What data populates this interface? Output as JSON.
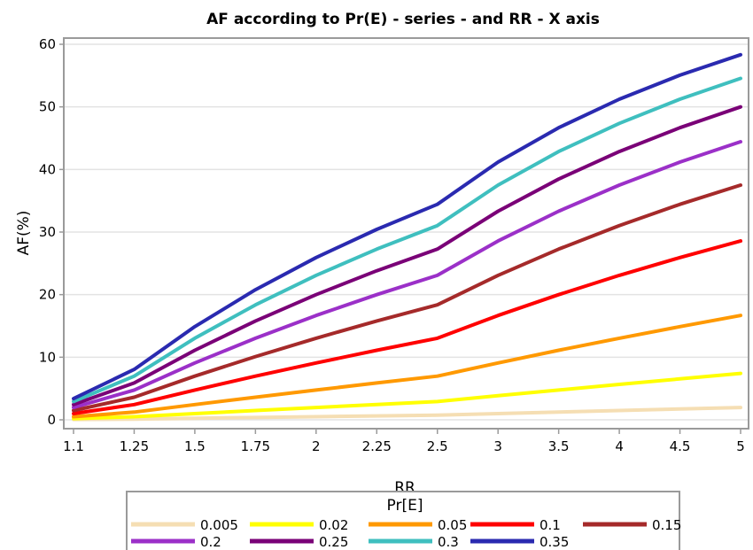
{
  "chart_data": {
    "type": "line",
    "title": "AF according to Pr(E) - series  - and RR - X axis",
    "xlabel": "RR",
    "ylabel": "AF(%)",
    "x": [
      "1.1",
      "1.25",
      "1.5",
      "1.75",
      "2",
      "2.25",
      "2.5",
      "3",
      "3.5",
      "4",
      "4.5",
      "5"
    ],
    "ylim": [
      0,
      60
    ],
    "yticks": [
      0,
      10,
      20,
      30,
      40,
      50,
      60
    ],
    "grid": true,
    "legend": {
      "title": "Pr[E]",
      "placement": "bottom"
    },
    "series": [
      {
        "name": "0.005",
        "color": "#f5deb3",
        "values": [
          0.05,
          0.12,
          0.25,
          0.37,
          0.5,
          0.62,
          0.74,
          0.99,
          1.23,
          1.48,
          1.72,
          1.96
        ]
      },
      {
        "name": "0.02",
        "color": "#ffff00",
        "values": [
          0.2,
          0.5,
          0.99,
          1.48,
          1.96,
          2.44,
          2.91,
          3.85,
          4.76,
          5.66,
          6.54,
          7.41
        ]
      },
      {
        "name": "0.05",
        "color": "#ff9900",
        "values": [
          0.5,
          1.23,
          2.44,
          3.61,
          4.76,
          5.88,
          6.98,
          9.09,
          11.11,
          13.04,
          14.89,
          16.67
        ]
      },
      {
        "name": "0.1",
        "color": "#ff0000",
        "values": [
          0.99,
          2.44,
          4.76,
          6.98,
          9.09,
          11.11,
          13.04,
          16.67,
          20.0,
          23.08,
          25.93,
          28.57
        ]
      },
      {
        "name": "0.15",
        "color": "#a52a2a",
        "values": [
          1.48,
          3.61,
          6.98,
          10.11,
          13.04,
          15.79,
          18.37,
          23.08,
          27.27,
          31.03,
          34.43,
          37.5
        ]
      },
      {
        "name": "0.2",
        "color": "#9b30c8",
        "values": [
          1.96,
          4.76,
          9.09,
          13.04,
          16.67,
          20.0,
          23.08,
          28.57,
          33.33,
          37.5,
          41.18,
          44.44
        ]
      },
      {
        "name": "0.25",
        "color": "#7a0077",
        "values": [
          2.44,
          5.88,
          11.11,
          15.79,
          20.0,
          23.81,
          27.27,
          33.33,
          38.46,
          42.86,
          46.67,
          50.0
        ]
      },
      {
        "name": "0.3",
        "color": "#3fbfbf",
        "values": [
          2.91,
          6.98,
          13.04,
          18.37,
          23.08,
          27.27,
          31.03,
          37.5,
          42.86,
          47.37,
          51.22,
          54.55
        ]
      },
      {
        "name": "0.35",
        "color": "#2a2ab0",
        "values": [
          3.38,
          8.05,
          14.89,
          20.79,
          25.93,
          30.43,
          34.43,
          41.18,
          46.67,
          51.22,
          55.06,
          58.33
        ]
      }
    ]
  }
}
